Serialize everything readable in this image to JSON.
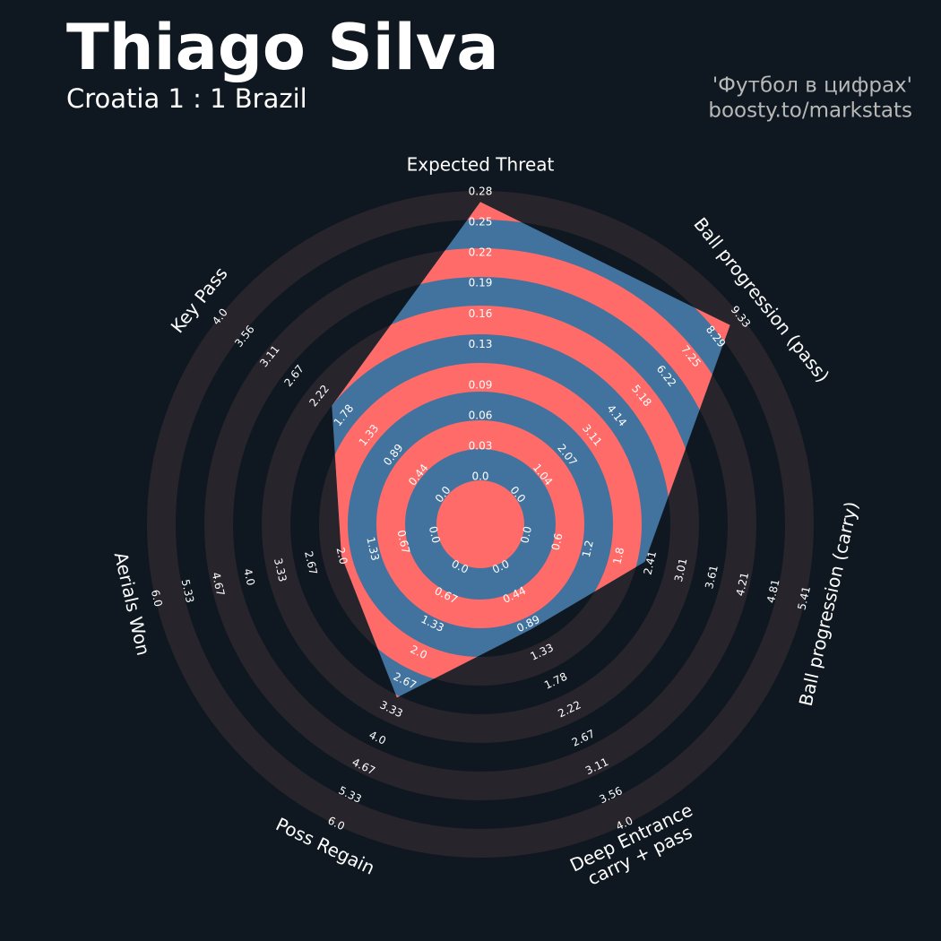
{
  "chart_data": {
    "type": "radar",
    "title": "Thiago Silva",
    "subtitle": "Croatia 1 : 1 Brazil",
    "credits": [
      "'Футбол в цифрах'",
      "boosty.to/markstats"
    ],
    "categories": [
      "Expected Threat",
      "Ball progression (pass)",
      "Ball progression (carry)",
      "Deep Entrance\ncarry + pass",
      "Poss Regain",
      "Aerials Won",
      "Key Pass"
    ],
    "values": [
      0.27,
      8.9,
      2.3,
      0.97,
      3.05,
      2.0,
      2.0
    ],
    "ranges": [
      [
        0,
        0.28
      ],
      [
        0,
        9.33
      ],
      [
        0,
        5.41
      ],
      [
        0,
        4
      ],
      [
        0,
        6
      ],
      [
        0,
        6
      ],
      [
        0,
        4
      ]
    ],
    "ticks": [
      [
        {
          "value": 0,
          "label": "0.0"
        },
        0.03,
        0.06,
        0.09,
        0.13,
        0.16,
        0.19,
        0.22,
        0.25,
        0.28
      ],
      [
        {
          "value": 0,
          "label": "0.0"
        },
        1.04,
        2.07,
        3.11,
        4.14,
        5.18,
        6.22,
        7.25,
        8.29,
        9.33
      ],
      [
        {
          "value": 0,
          "label": "0.0"
        },
        0.6,
        1.2,
        1.8,
        2.41,
        3.01,
        3.61,
        4.21,
        4.81,
        5.41
      ],
      [
        {
          "value": 0,
          "label": "0.0"
        },
        0.44,
        0.89,
        1.33,
        1.78,
        2.22,
        2.67,
        3.11,
        3.56,
        {
          "value": 4,
          "label": "4.0"
        }
      ],
      [
        {
          "value": 0,
          "label": "0.0"
        },
        0.67,
        1.33,
        {
          "value": 2,
          "label": "2.0"
        },
        2.67,
        3.33,
        {
          "value": 4,
          "label": "4.0"
        },
        4.67,
        5.33,
        {
          "value": 6,
          "label": "6.0"
        }
      ],
      [
        {
          "value": 0,
          "label": "0.0"
        },
        0.67,
        1.33,
        {
          "value": 2,
          "label": "2.0"
        },
        2.67,
        3.33,
        {
          "value": 4,
          "label": "4.0"
        },
        4.67,
        5.33,
        {
          "value": 6,
          "label": "6.0"
        }
      ],
      [
        {
          "value": 0,
          "label": "0.0"
        },
        0.44,
        0.89,
        1.33,
        1.78,
        2.22,
        2.67,
        3.11,
        3.56,
        {
          "value": 4,
          "label": "4.0"
        }
      ]
    ],
    "color": "#41739e",
    "ring_color": "#28242b",
    "ring_highlight_color": "#ff6b68"
  }
}
